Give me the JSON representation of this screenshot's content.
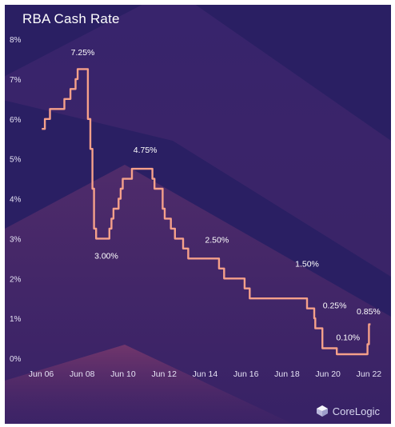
{
  "chart_data": {
    "type": "line",
    "title": "RBA Cash Rate",
    "xlabel": "",
    "ylabel": "",
    "x_ticks": [
      "Jun 06",
      "Jun 08",
      "Jun 10",
      "Jun 12",
      "Jun 14",
      "Jun 16",
      "Jun 18",
      "Jun 20",
      "Jun 22"
    ],
    "x_tick_values": [
      2006.42,
      2008.42,
      2010.42,
      2012.42,
      2014.42,
      2016.42,
      2018.42,
      2020.42,
      2022.42
    ],
    "y_ticks": [
      "0%",
      "1%",
      "2%",
      "3%",
      "4%",
      "5%",
      "6%",
      "7%",
      "8%"
    ],
    "y_tick_values": [
      0,
      1,
      2,
      3,
      4,
      5,
      6,
      7,
      8
    ],
    "xlim": [
      2006.4,
      2022.6
    ],
    "ylim": [
      0,
      8
    ],
    "grid": false,
    "line_color": "#f5a08a",
    "series": [
      {
        "points": [
          [
            2006.45,
            5.75
          ],
          [
            2006.6,
            5.75
          ],
          [
            2006.6,
            6.0
          ],
          [
            2006.85,
            6.0
          ],
          [
            2006.85,
            6.25
          ],
          [
            2007.55,
            6.25
          ],
          [
            2007.55,
            6.5
          ],
          [
            2007.85,
            6.5
          ],
          [
            2007.85,
            6.75
          ],
          [
            2008.1,
            6.75
          ],
          [
            2008.1,
            7.0
          ],
          [
            2008.2,
            7.0
          ],
          [
            2008.2,
            7.25
          ],
          [
            2008.7,
            7.25
          ],
          [
            2008.7,
            6.0
          ],
          [
            2008.82,
            6.0
          ],
          [
            2008.82,
            5.25
          ],
          [
            2008.92,
            5.25
          ],
          [
            2008.92,
            4.25
          ],
          [
            2009.0,
            4.25
          ],
          [
            2009.0,
            3.25
          ],
          [
            2009.1,
            3.25
          ],
          [
            2009.1,
            3.0
          ],
          [
            2009.75,
            3.0
          ],
          [
            2009.75,
            3.25
          ],
          [
            2009.85,
            3.25
          ],
          [
            2009.85,
            3.5
          ],
          [
            2009.95,
            3.5
          ],
          [
            2009.95,
            3.75
          ],
          [
            2010.2,
            3.75
          ],
          [
            2010.2,
            4.0
          ],
          [
            2010.3,
            4.0
          ],
          [
            2010.3,
            4.25
          ],
          [
            2010.4,
            4.25
          ],
          [
            2010.4,
            4.5
          ],
          [
            2010.85,
            4.5
          ],
          [
            2010.85,
            4.75
          ],
          [
            2011.85,
            4.75
          ],
          [
            2011.85,
            4.5
          ],
          [
            2011.95,
            4.5
          ],
          [
            2011.95,
            4.25
          ],
          [
            2012.35,
            4.25
          ],
          [
            2012.35,
            3.75
          ],
          [
            2012.45,
            3.75
          ],
          [
            2012.45,
            3.5
          ],
          [
            2012.75,
            3.5
          ],
          [
            2012.75,
            3.25
          ],
          [
            2012.95,
            3.25
          ],
          [
            2012.95,
            3.0
          ],
          [
            2013.35,
            3.0
          ],
          [
            2013.35,
            2.75
          ],
          [
            2013.6,
            2.75
          ],
          [
            2013.6,
            2.5
          ],
          [
            2015.1,
            2.5
          ],
          [
            2015.1,
            2.25
          ],
          [
            2015.35,
            2.25
          ],
          [
            2015.35,
            2.0
          ],
          [
            2016.35,
            2.0
          ],
          [
            2016.35,
            1.75
          ],
          [
            2016.6,
            1.75
          ],
          [
            2016.6,
            1.5
          ],
          [
            2019.4,
            1.5
          ],
          [
            2019.4,
            1.25
          ],
          [
            2019.75,
            1.25
          ],
          [
            2019.75,
            1.0
          ],
          [
            2019.8,
            1.0
          ],
          [
            2019.8,
            0.75
          ],
          [
            2020.15,
            0.75
          ],
          [
            2020.15,
            0.25
          ],
          [
            2020.85,
            0.25
          ],
          [
            2020.85,
            0.1
          ],
          [
            2022.35,
            0.1
          ],
          [
            2022.35,
            0.35
          ],
          [
            2022.42,
            0.35
          ],
          [
            2022.42,
            0.85
          ],
          [
            2022.5,
            0.85
          ]
        ]
      }
    ],
    "annotations": [
      {
        "text": "7.25%",
        "x": 2008.45,
        "y": 7.6
      },
      {
        "text": "4.75%",
        "x": 2011.5,
        "y": 5.15
      },
      {
        "text": "3.00%",
        "x": 2009.6,
        "y": 2.5
      },
      {
        "text": "2.50%",
        "x": 2015.0,
        "y": 2.9
      },
      {
        "text": "1.50%",
        "x": 2019.4,
        "y": 2.3
      },
      {
        "text": "0.25%",
        "x": 2020.75,
        "y": 1.25
      },
      {
        "text": "0.10%",
        "x": 2021.4,
        "y": 0.45
      },
      {
        "text": "0.85%",
        "x": 2022.4,
        "y": 1.1
      }
    ]
  },
  "brand": {
    "name": "CoreLogic",
    "icon": "corelogic-logo-icon"
  }
}
